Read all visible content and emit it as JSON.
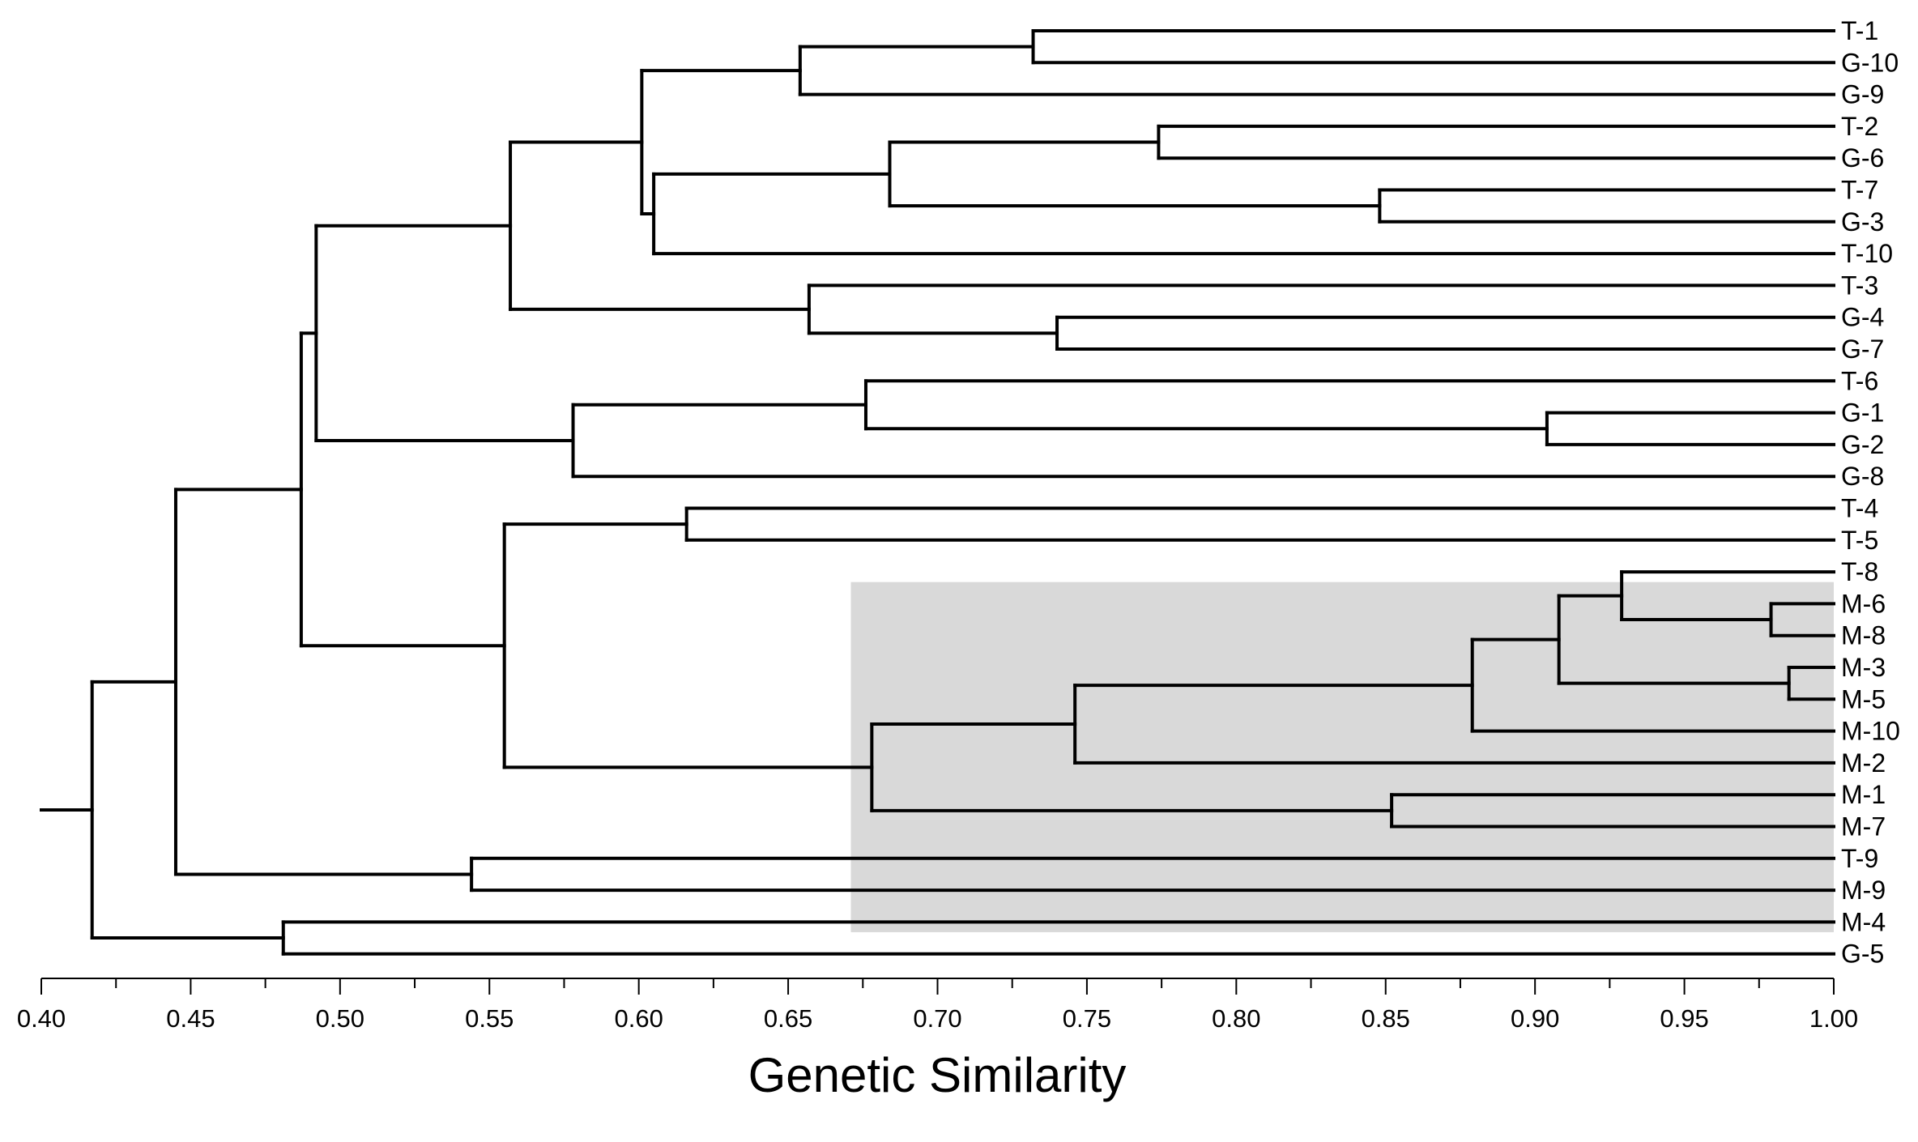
{
  "chart_data": {
    "type": "dendrogram",
    "orientation": "horizontal",
    "xlabel": "Genetic Similarity",
    "xlim": [
      0.4,
      1.0
    ],
    "x_ticks": [
      "0.40",
      "0.45",
      "0.50",
      "0.55",
      "0.60",
      "0.65",
      "0.70",
      "0.75",
      "0.80",
      "0.85",
      "0.90",
      "0.95",
      "1.00"
    ],
    "leaves": [
      "T-1",
      "G-10",
      "G-9",
      "T-2",
      "G-6",
      "T-7",
      "G-3",
      "T-10",
      "T-3",
      "G-4",
      "G-7",
      "T-6",
      "G-1",
      "G-2",
      "G-8",
      "T-4",
      "T-5",
      "T-8",
      "M-6",
      "M-8",
      "M-3",
      "M-5",
      "M-10",
      "M-2",
      "M-1",
      "M-7",
      "T-9",
      "M-9",
      "M-4",
      "G-5"
    ],
    "merges": [
      {
        "id": "n1",
        "similarity": 0.732,
        "children": [
          "T-1",
          "G-10"
        ]
      },
      {
        "id": "n2",
        "similarity": 0.654,
        "children": [
          "n1",
          "G-9"
        ]
      },
      {
        "id": "n3",
        "similarity": 0.774,
        "children": [
          "T-2",
          "G-6"
        ]
      },
      {
        "id": "n4",
        "similarity": 0.848,
        "children": [
          "T-7",
          "G-3"
        ]
      },
      {
        "id": "n5",
        "similarity": 0.684,
        "children": [
          "n3",
          "n4"
        ]
      },
      {
        "id": "n6",
        "similarity": 0.605,
        "children": [
          "n5",
          "T-10"
        ]
      },
      {
        "id": "n7",
        "similarity": 0.601,
        "children": [
          "n2",
          "n6"
        ]
      },
      {
        "id": "n8",
        "similarity": 0.74,
        "children": [
          "G-4",
          "G-7"
        ]
      },
      {
        "id": "n9",
        "similarity": 0.657,
        "children": [
          "T-3",
          "n8"
        ]
      },
      {
        "id": "n10",
        "similarity": 0.557,
        "children": [
          "n7",
          "n9"
        ]
      },
      {
        "id": "n11",
        "similarity": 0.904,
        "children": [
          "G-1",
          "G-2"
        ]
      },
      {
        "id": "n12",
        "similarity": 0.676,
        "children": [
          "T-6",
          "n11"
        ]
      },
      {
        "id": "n13",
        "similarity": 0.578,
        "children": [
          "n12",
          "G-8"
        ]
      },
      {
        "id": "n14",
        "similarity": 0.492,
        "children": [
          "n10",
          "n13"
        ]
      },
      {
        "id": "n15",
        "similarity": 0.616,
        "children": [
          "T-4",
          "T-5"
        ]
      },
      {
        "id": "n16",
        "similarity": 0.979,
        "children": [
          "M-6",
          "M-8"
        ]
      },
      {
        "id": "n17",
        "similarity": 0.929,
        "children": [
          "T-8",
          "n16"
        ]
      },
      {
        "id": "n18",
        "similarity": 0.985,
        "children": [
          "M-3",
          "M-5"
        ]
      },
      {
        "id": "n19",
        "similarity": 0.908,
        "children": [
          "n17",
          "n18"
        ]
      },
      {
        "id": "n20",
        "similarity": 0.879,
        "children": [
          "n19",
          "M-10"
        ]
      },
      {
        "id": "n21",
        "similarity": 0.746,
        "children": [
          "n20",
          "M-2"
        ]
      },
      {
        "id": "n22",
        "similarity": 0.852,
        "children": [
          "M-1",
          "M-7"
        ]
      },
      {
        "id": "n23",
        "similarity": 0.678,
        "children": [
          "n21",
          "n22"
        ]
      },
      {
        "id": "n24",
        "similarity": 0.555,
        "children": [
          "n15",
          "n23"
        ]
      },
      {
        "id": "n25",
        "similarity": 0.487,
        "children": [
          "n14",
          "n24"
        ]
      },
      {
        "id": "n26",
        "similarity": 0.544,
        "children": [
          "T-9",
          "M-9"
        ]
      },
      {
        "id": "n27",
        "similarity": 0.445,
        "children": [
          "n25",
          "n26"
        ]
      },
      {
        "id": "n28",
        "similarity": 0.481,
        "children": [
          "M-4",
          "G-5"
        ]
      },
      {
        "id": "n29",
        "similarity": 0.417,
        "children": [
          "n27",
          "n28"
        ]
      }
    ],
    "root_stub_start": 0.4,
    "highlight_region": {
      "x_from": 0.671,
      "x_to": 1.0,
      "leaves_from": "T-8",
      "leaves_to": "M-4",
      "color": "#d9d9d9"
    },
    "colors": {
      "line": "#000000",
      "highlight": "#d9d9d9",
      "background": "#ffffff"
    },
    "grid": false,
    "legend": "none"
  }
}
